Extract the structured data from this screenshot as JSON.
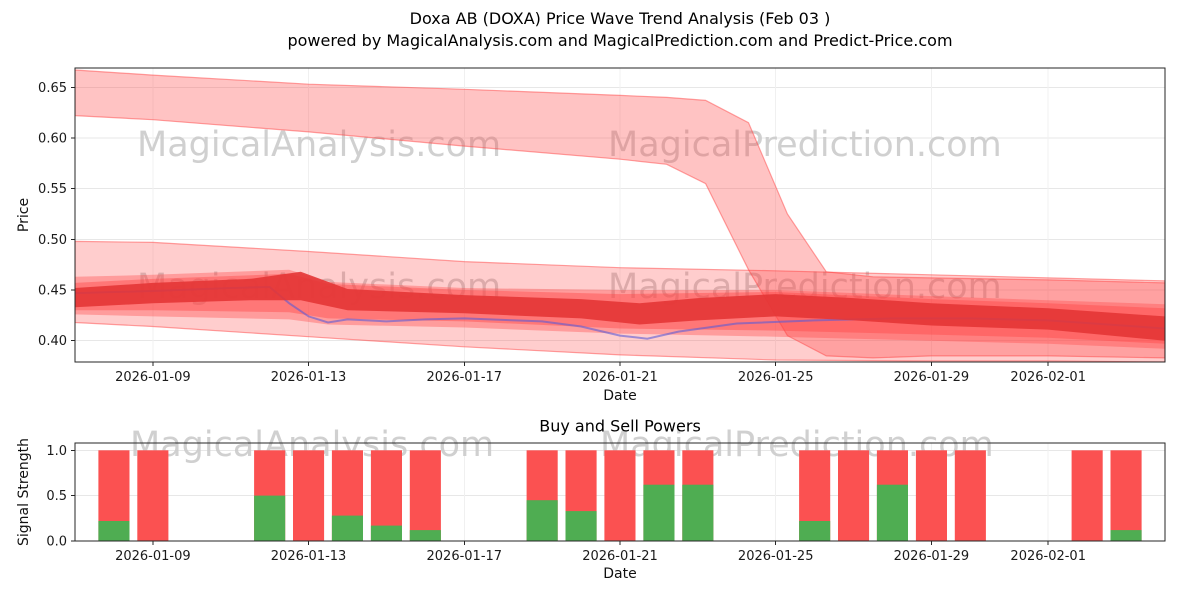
{
  "header": {
    "title": "Doxa AB (DOXA) Price Wave Trend Analysis (Feb 03 )",
    "subtitle": "powered by MagicalAnalysis.com and MagicalPrediction.com and Predict-Price.com"
  },
  "watermark": {
    "analysis_text": "MagicalAnalysis.com",
    "prediction_text": "MagicalPrediction.com",
    "color": "#cccccc"
  },
  "chart_data": [
    {
      "type": "area",
      "name": "price_wave_trend",
      "title": "",
      "xlabel": "Date",
      "ylabel": "Price",
      "x_start": "2026-01-07",
      "x_span_days": 28.0,
      "ylim": [
        0.379,
        0.669
      ],
      "yticks": [
        "0.40",
        "0.45",
        "0.50",
        "0.55",
        "0.60",
        "0.65"
      ],
      "xticks": [
        "2026-01-09",
        "2026-01-13",
        "2026-01-17",
        "2026-01-21",
        "2026-01-25",
        "2026-01-29",
        "2026-02-01"
      ],
      "grid": true,
      "legend": "none",
      "bands": [
        {
          "name": "forecast-outer-band",
          "fill": "#ff4545",
          "opacity": 0.27,
          "stroke": true,
          "above_line": false,
          "points": [
            [
              0,
              0.418,
              0.498
            ],
            [
              2,
              0.414,
              0.497
            ],
            [
              6,
              0.404,
              0.488
            ],
            [
              10,
              0.394,
              0.478
            ],
            [
              14,
              0.386,
              0.472
            ],
            [
              18,
              0.381,
              0.469
            ],
            [
              22,
              0.38,
              0.465
            ],
            [
              25,
              0.38,
              0.462
            ],
            [
              28,
              0.379,
              0.459
            ]
          ]
        },
        {
          "name": "forecast-upper-band",
          "fill": "#ff4545",
          "opacity": 0.32,
          "stroke": true,
          "above_line": false,
          "points": [
            [
              0,
              0.622,
              0.667
            ],
            [
              2,
              0.618,
              0.662
            ],
            [
              6,
              0.606,
              0.653
            ],
            [
              10,
              0.592,
              0.648
            ],
            [
              14,
              0.579,
              0.642
            ],
            [
              15.2,
              0.574,
              0.64
            ],
            [
              16.2,
              0.555,
              0.637
            ],
            [
              17.3,
              0.47,
              0.615
            ],
            [
              18.3,
              0.405,
              0.525
            ],
            [
              19.3,
              0.385,
              0.468
            ],
            [
              20.5,
              0.383,
              0.463
            ],
            [
              22,
              0.385,
              0.462
            ],
            [
              25,
              0.385,
              0.46
            ],
            [
              28,
              0.383,
              0.457
            ]
          ]
        },
        {
          "name": "forecast-mid-band",
          "fill": "#ff4545",
          "opacity": 0.36,
          "stroke": false,
          "above_line": false,
          "points": [
            [
              0,
              0.426,
              0.463
            ],
            [
              2,
              0.424,
              0.465
            ],
            [
              5.5,
              0.421,
              0.47
            ],
            [
              6.5,
              0.416,
              0.458
            ],
            [
              10,
              0.413,
              0.452
            ],
            [
              14,
              0.407,
              0.45
            ],
            [
              18,
              0.404,
              0.45
            ],
            [
              22,
              0.4,
              0.444
            ],
            [
              25,
              0.397,
              0.44
            ],
            [
              28,
              0.392,
              0.436
            ]
          ]
        },
        {
          "name": "forecast-inner-band",
          "fill": "#ff4545",
          "opacity": 0.42,
          "stroke": false,
          "above_line": false,
          "points": [
            [
              0,
              0.43,
              0.457
            ],
            [
              2,
              0.43,
              0.461
            ],
            [
              5.5,
              0.428,
              0.466
            ],
            [
              6.5,
              0.422,
              0.456
            ],
            [
              10,
              0.419,
              0.45
            ],
            [
              14,
              0.412,
              0.446
            ],
            [
              18,
              0.41,
              0.448
            ],
            [
              22,
              0.406,
              0.441
            ],
            [
              25,
              0.403,
              0.437
            ],
            [
              28,
              0.397,
              0.432
            ]
          ]
        },
        {
          "name": "forecast-core-band",
          "fill": "#e43434",
          "opacity": 0.88,
          "stroke": false,
          "above_line": true,
          "points": [
            [
              0,
              0.433,
              0.452
            ],
            [
              2,
              0.437,
              0.457
            ],
            [
              4.5,
              0.44,
              0.461
            ],
            [
              5.8,
              0.44,
              0.468
            ],
            [
              7,
              0.43,
              0.451
            ],
            [
              10,
              0.427,
              0.445
            ],
            [
              13,
              0.422,
              0.441
            ],
            [
              14.5,
              0.416,
              0.437
            ],
            [
              16,
              0.42,
              0.442
            ],
            [
              18,
              0.424,
              0.446
            ],
            [
              20,
              0.42,
              0.442
            ],
            [
              22,
              0.415,
              0.437
            ],
            [
              25,
              0.411,
              0.432
            ],
            [
              28,
              0.4,
              0.424
            ]
          ]
        }
      ],
      "trend_line": {
        "name": "trend-line",
        "color": "#5b5bd6",
        "opacity": 0.6,
        "points": [
          [
            0,
            0.447
          ],
          [
            2,
            0.449
          ],
          [
            4,
            0.452
          ],
          [
            5,
            0.453
          ],
          [
            5.5,
            0.437
          ],
          [
            6,
            0.424
          ],
          [
            6.5,
            0.418
          ],
          [
            7,
            0.421
          ],
          [
            8,
            0.419
          ],
          [
            9,
            0.421
          ],
          [
            10,
            0.422
          ],
          [
            12,
            0.419
          ],
          [
            13,
            0.414
          ],
          [
            14,
            0.405
          ],
          [
            14.7,
            0.402
          ],
          [
            15.5,
            0.409
          ],
          [
            17,
            0.417
          ],
          [
            19,
            0.42
          ],
          [
            21,
            0.422
          ],
          [
            23,
            0.422
          ],
          [
            25,
            0.42
          ],
          [
            28,
            0.412
          ]
        ]
      }
    },
    {
      "type": "bar",
      "name": "buy_sell_powers",
      "title": "Buy and Sell Powers",
      "xlabel": "Date",
      "ylabel": "Signal Strength",
      "x_start": "2026-01-07",
      "x_span_days": 28.0,
      "ylim": [
        0,
        1.08
      ],
      "yticks": [
        "0.0",
        "0.5",
        "1.0"
      ],
      "xticks": [
        "2026-01-09",
        "2026-01-13",
        "2026-01-17",
        "2026-01-21",
        "2026-01-25",
        "2026-01-29",
        "2026-02-01"
      ],
      "grid": true,
      "sell_color": "#fb5151",
      "buy_color": "#4fad52",
      "bar_width_days": 0.8,
      "bars": [
        {
          "date": "2026-01-08",
          "buy": 0.22,
          "sell": 1.0
        },
        {
          "date": "2026-01-09",
          "buy": 0.0,
          "sell": 1.0
        },
        {
          "date": "2026-01-12",
          "buy": 0.5,
          "sell": 1.0
        },
        {
          "date": "2026-01-13",
          "buy": 0.0,
          "sell": 1.0
        },
        {
          "date": "2026-01-14",
          "buy": 0.28,
          "sell": 1.0
        },
        {
          "date": "2026-01-15",
          "buy": 0.17,
          "sell": 1.0
        },
        {
          "date": "2026-01-16",
          "buy": 0.12,
          "sell": 1.0
        },
        {
          "date": "2026-01-19",
          "buy": 0.45,
          "sell": 1.0
        },
        {
          "date": "2026-01-20",
          "buy": 0.33,
          "sell": 1.0
        },
        {
          "date": "2026-01-21",
          "buy": 0.0,
          "sell": 1.0
        },
        {
          "date": "2026-01-22",
          "buy": 0.62,
          "sell": 1.0
        },
        {
          "date": "2026-01-23",
          "buy": 0.62,
          "sell": 1.0
        },
        {
          "date": "2026-01-26",
          "buy": 0.22,
          "sell": 1.0
        },
        {
          "date": "2026-01-27",
          "buy": 0.0,
          "sell": 1.0
        },
        {
          "date": "2026-01-28",
          "buy": 0.62,
          "sell": 1.0
        },
        {
          "date": "2026-01-29",
          "buy": 0.0,
          "sell": 1.0
        },
        {
          "date": "2026-01-30",
          "buy": 0.0,
          "sell": 1.0
        },
        {
          "date": "2026-02-02",
          "buy": 0.0,
          "sell": 1.0
        },
        {
          "date": "2026-02-03",
          "buy": 0.12,
          "sell": 1.0
        }
      ]
    }
  ]
}
